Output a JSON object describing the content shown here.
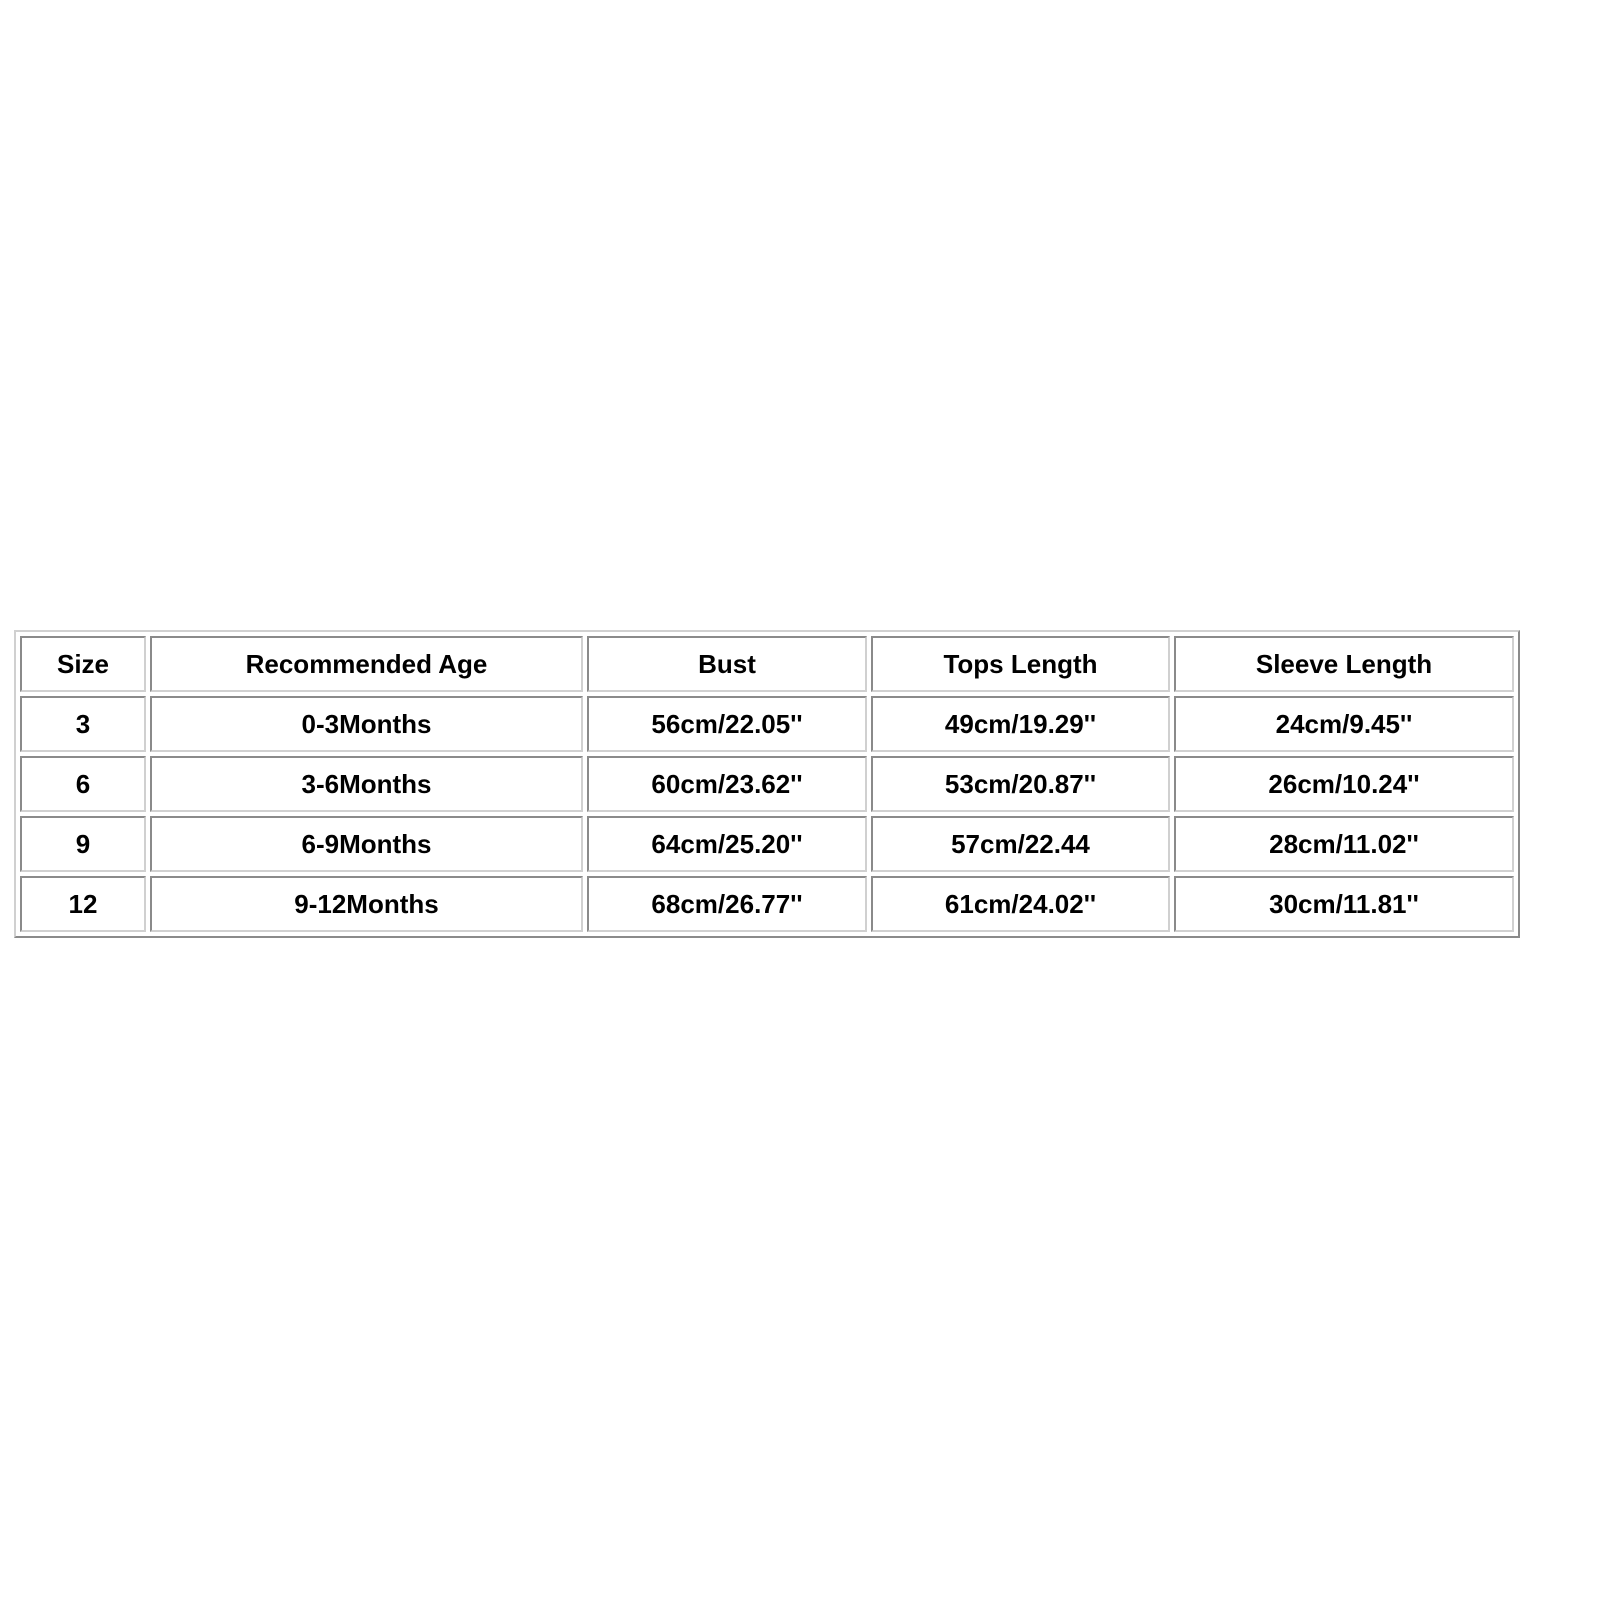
{
  "table": {
    "headers": [
      "Size",
      "Recommended Age",
      "Bust",
      "Tops Length",
      "Sleeve Length"
    ],
    "rows": [
      [
        "3",
        "0-3Months",
        "56cm/22.05''",
        "49cm/19.29''",
        "24cm/9.45''"
      ],
      [
        "6",
        "3-6Months",
        "60cm/23.62''",
        "53cm/20.87''",
        "26cm/10.24''"
      ],
      [
        "9",
        "6-9Months",
        "64cm/25.20''",
        "57cm/22.44",
        "28cm/11.02''"
      ],
      [
        "12",
        "9-12Months",
        "68cm/26.77''",
        "61cm/24.02''",
        "30cm/11.81''"
      ]
    ]
  }
}
